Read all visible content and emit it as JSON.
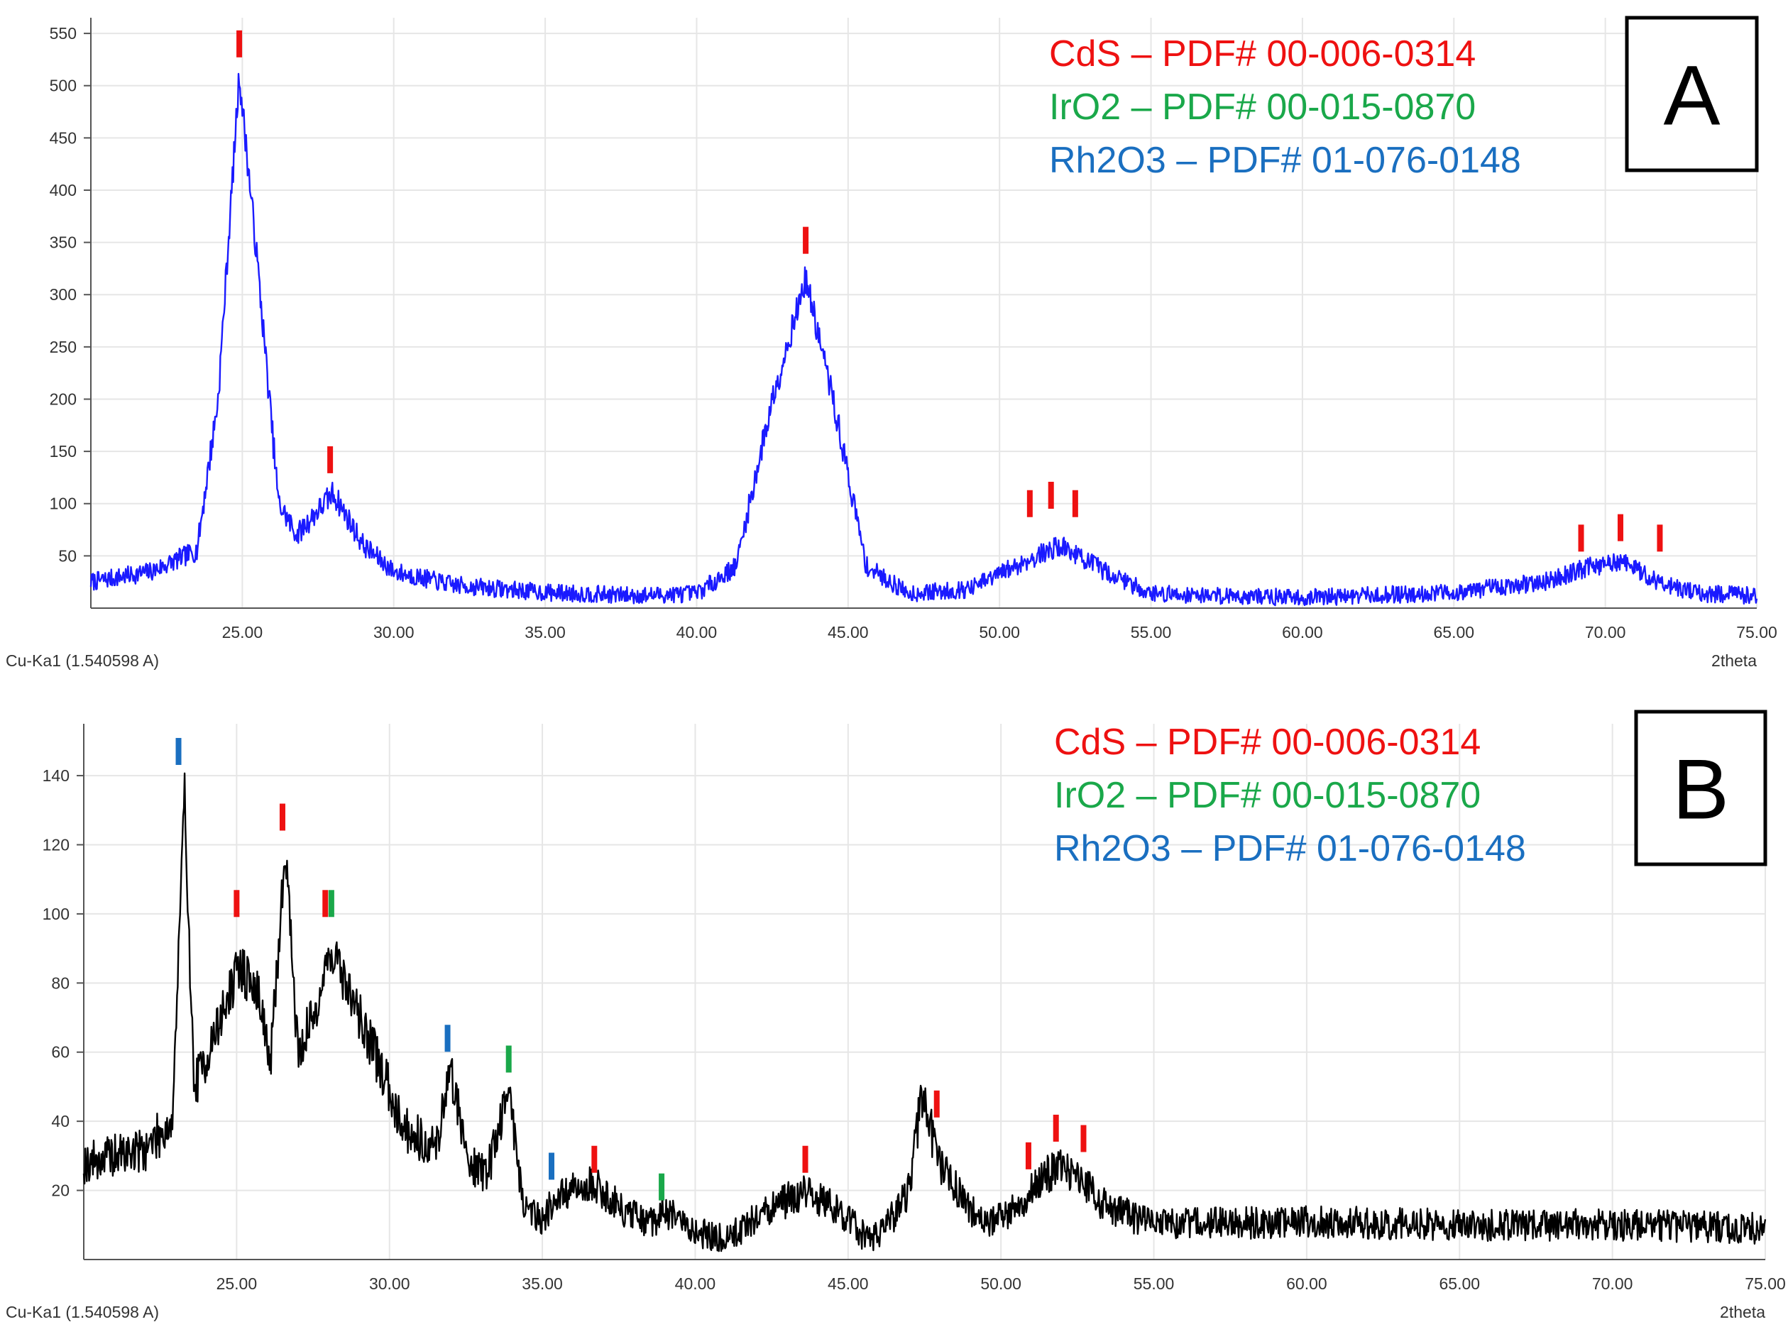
{
  "chart_data": [
    {
      "type": "line",
      "panel_label": "A",
      "line_color": "#1a1aff",
      "xlabel": "2theta",
      "radiation_label": "Cu-Ka1 (1.540598 A)",
      "xlim": [
        20.0,
        75.0
      ],
      "ylim": [
        0,
        565
      ],
      "x_ticks": [
        25,
        30,
        35,
        40,
        45,
        50,
        55,
        60,
        65,
        70,
        75
      ],
      "x_tick_labels": [
        "25.00",
        "30.00",
        "35.00",
        "40.00",
        "45.00",
        "50.00",
        "55.00",
        "60.00",
        "65.00",
        "70.00",
        "75.00"
      ],
      "y_ticks": [
        50,
        100,
        150,
        200,
        250,
        300,
        350,
        400,
        450,
        500,
        550
      ],
      "y_tick_labels": [
        "50",
        "100",
        "150",
        "200",
        "250",
        "300",
        "350",
        "400",
        "450",
        "500",
        "550"
      ],
      "grid": true,
      "legend_position": "top-right",
      "legend": [
        {
          "text": "CdS – PDF# 00-006-0314",
          "color": "#ee1111"
        },
        {
          "text": "IrO2 – PDF# 00-015-0870",
          "color": "#1aa84a"
        },
        {
          "text": "Rh2O3 – PDF# 01-076-0148",
          "color": "#1a6fc0"
        }
      ],
      "baseline": [
        [
          20,
          25
        ],
        [
          22,
          35
        ],
        [
          23.5,
          55
        ],
        [
          24.2,
          200
        ],
        [
          24.9,
          510
        ],
        [
          25.5,
          330
        ],
        [
          26.2,
          100
        ],
        [
          26.8,
          70
        ],
        [
          28.0,
          110
        ],
        [
          29.0,
          60
        ],
        [
          30,
          35
        ],
        [
          32,
          22
        ],
        [
          35,
          15
        ],
        [
          38,
          12
        ],
        [
          40,
          14
        ],
        [
          41.3,
          40
        ],
        [
          42.5,
          200
        ],
        [
          43.6,
          315
        ],
        [
          44.5,
          200
        ],
        [
          45.6,
          40
        ],
        [
          47,
          14
        ],
        [
          49,
          18
        ],
        [
          50.5,
          40
        ],
        [
          52,
          60
        ],
        [
          53.5,
          35
        ],
        [
          55,
          14
        ],
        [
          60,
          10
        ],
        [
          65,
          15
        ],
        [
          68,
          25
        ],
        [
          69.3,
          38
        ],
        [
          70.5,
          45
        ],
        [
          71.8,
          25
        ],
        [
          73,
          14
        ],
        [
          75,
          12
        ]
      ],
      "noise_amplitude": 14,
      "markers": [
        {
          "x": 24.9,
          "y": 540,
          "phase": "CdS",
          "color": "#ee1111"
        },
        {
          "x": 27.9,
          "y": 142,
          "phase": "CdS",
          "color": "#ee1111"
        },
        {
          "x": 43.6,
          "y": 352,
          "phase": "CdS",
          "color": "#ee1111"
        },
        {
          "x": 51.0,
          "y": 100,
          "phase": "CdS",
          "color": "#ee1111"
        },
        {
          "x": 51.7,
          "y": 108,
          "phase": "CdS",
          "color": "#ee1111"
        },
        {
          "x": 52.5,
          "y": 100,
          "phase": "CdS",
          "color": "#ee1111"
        },
        {
          "x": 69.2,
          "y": 67,
          "phase": "CdS",
          "color": "#ee1111"
        },
        {
          "x": 70.5,
          "y": 77,
          "phase": "CdS",
          "color": "#ee1111"
        },
        {
          "x": 71.8,
          "y": 67,
          "phase": "CdS",
          "color": "#ee1111"
        }
      ]
    },
    {
      "type": "line",
      "panel_label": "B",
      "line_color": "#000000",
      "xlabel": "2theta",
      "radiation_label": "Cu-Ka1 (1.540598 A)",
      "xlim": [
        20.0,
        75.0
      ],
      "ylim": [
        0,
        155
      ],
      "x_ticks": [
        25,
        30,
        35,
        40,
        45,
        50,
        55,
        60,
        65,
        70,
        75
      ],
      "x_tick_labels": [
        "25.00",
        "30.00",
        "35.00",
        "40.00",
        "45.00",
        "50.00",
        "55.00",
        "60.00",
        "65.00",
        "70.00",
        "75.00"
      ],
      "y_ticks": [
        20,
        40,
        60,
        80,
        100,
        120,
        140
      ],
      "y_tick_labels": [
        "20",
        "40",
        "60",
        "80",
        "100",
        "120",
        "140"
      ],
      "grid": true,
      "legend_position": "top-right",
      "legend": [
        {
          "text": "CdS – PDF# 00-006-0314",
          "color": "#ee1111"
        },
        {
          "text": "IrO2 – PDF# 00-015-0870",
          "color": "#1aa84a"
        },
        {
          "text": "Rh2O3 – PDF# 01-076-0148",
          "color": "#1a6fc0"
        }
      ],
      "baseline": [
        [
          20,
          28
        ],
        [
          22,
          32
        ],
        [
          22.9,
          40
        ],
        [
          23.3,
          135
        ],
        [
          23.6,
          50
        ],
        [
          24,
          58
        ],
        [
          25.1,
          85
        ],
        [
          25.8,
          75
        ],
        [
          26.1,
          55
        ],
        [
          26.6,
          120
        ],
        [
          27.0,
          60
        ],
        [
          27.5,
          70
        ],
        [
          28.1,
          90
        ],
        [
          28.8,
          75
        ],
        [
          29.5,
          60
        ],
        [
          30.5,
          38
        ],
        [
          31.5,
          32
        ],
        [
          32.0,
          55
        ],
        [
          32.6,
          28
        ],
        [
          33.2,
          25
        ],
        [
          33.9,
          50
        ],
        [
          34.4,
          15
        ],
        [
          35.0,
          12
        ],
        [
          35.5,
          18
        ],
        [
          36.7,
          22
        ],
        [
          37.5,
          15
        ],
        [
          38.5,
          10
        ],
        [
          39.0,
          14
        ],
        [
          40,
          8
        ],
        [
          41,
          6
        ],
        [
          42,
          12
        ],
        [
          43.6,
          20
        ],
        [
          45,
          12
        ],
        [
          45.7,
          5
        ],
        [
          46.3,
          10
        ],
        [
          47.0,
          20
        ],
        [
          47.4,
          48
        ],
        [
          48.0,
          28
        ],
        [
          48.7,
          18
        ],
        [
          49.5,
          10
        ],
        [
          50.5,
          15
        ],
        [
          51.2,
          22
        ],
        [
          51.8,
          27
        ],
        [
          52.7,
          22
        ],
        [
          53.5,
          15
        ],
        [
          55,
          10
        ],
        [
          60,
          11
        ],
        [
          65,
          10
        ],
        [
          70,
          10
        ],
        [
          75,
          9
        ]
      ],
      "noise_amplitude": 7,
      "markers": [
        {
          "x": 23.1,
          "y": 147,
          "phase": "Rh2O3",
          "color": "#1a6fc0"
        },
        {
          "x": 26.5,
          "y": 128,
          "phase": "CdS",
          "color": "#ee1111"
        },
        {
          "x": 25.0,
          "y": 103,
          "phase": "CdS",
          "color": "#ee1111"
        },
        {
          "x": 27.9,
          "y": 103,
          "phase": "CdS",
          "color": "#ee1111"
        },
        {
          "x": 28.1,
          "y": 103,
          "phase": "IrO2",
          "color": "#1aa84a"
        },
        {
          "x": 31.9,
          "y": 64,
          "phase": "Rh2O3",
          "color": "#1a6fc0"
        },
        {
          "x": 33.9,
          "y": 58,
          "phase": "IrO2",
          "color": "#1aa84a"
        },
        {
          "x": 35.3,
          "y": 27,
          "phase": "Rh2O3",
          "color": "#1a6fc0"
        },
        {
          "x": 36.7,
          "y": 29,
          "phase": "CdS",
          "color": "#ee1111"
        },
        {
          "x": 38.9,
          "y": 21,
          "phase": "IrO2",
          "color": "#1aa84a"
        },
        {
          "x": 43.6,
          "y": 29,
          "phase": "CdS",
          "color": "#ee1111"
        },
        {
          "x": 47.9,
          "y": 45,
          "phase": "CdS",
          "color": "#ee1111"
        },
        {
          "x": 50.9,
          "y": 30,
          "phase": "CdS",
          "color": "#ee1111"
        },
        {
          "x": 51.8,
          "y": 38,
          "phase": "CdS",
          "color": "#ee1111"
        },
        {
          "x": 52.7,
          "y": 35,
          "phase": "CdS",
          "color": "#ee1111"
        }
      ]
    }
  ]
}
